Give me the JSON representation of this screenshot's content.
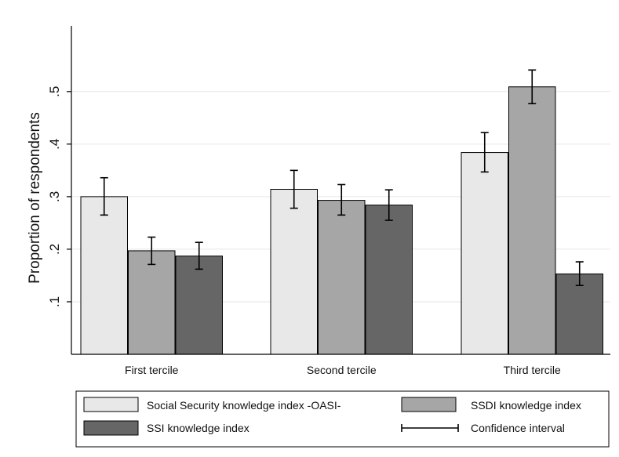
{
  "colors": {
    "background": "#ffffff",
    "gridline": "#e6e6e6",
    "axis": "#000000",
    "errorbar": "#000000",
    "bar_stroke": "#000000",
    "series": [
      "#e8e8e8",
      "#a6a6a6",
      "#666666"
    ]
  },
  "chart_data": {
    "type": "bar",
    "title": "",
    "xlabel": "",
    "ylabel": "Proportion of respondents",
    "categories": [
      "First tercile",
      "Second tercile",
      "Third tercile"
    ],
    "series": [
      {
        "name": "Social Security knowledge index -OASI-",
        "values": [
          0.3,
          0.314,
          0.384
        ],
        "ci_low": [
          0.265,
          0.278,
          0.347
        ],
        "ci_high": [
          0.336,
          0.35,
          0.422
        ]
      },
      {
        "name": "SSDI knowledge index",
        "values": [
          0.197,
          0.293,
          0.509
        ],
        "ci_low": [
          0.171,
          0.265,
          0.477
        ],
        "ci_high": [
          0.223,
          0.323,
          0.541
        ]
      },
      {
        "name": "SSI knowledge index",
        "values": [
          0.187,
          0.284,
          0.153
        ],
        "ci_low": [
          0.162,
          0.255,
          0.131
        ],
        "ci_high": [
          0.213,
          0.313,
          0.176
        ]
      }
    ],
    "ylim": [
      0.0,
      0.625
    ],
    "yticks": [
      0.1,
      0.2,
      0.3,
      0.4,
      0.5
    ],
    "ytick_labels": [
      ".1",
      ".2",
      ".3",
      ".4",
      ".5"
    ],
    "grid": true,
    "legend": {
      "placement": "bottom",
      "entries": [
        {
          "label": "Social Security knowledge index -OASI-",
          "kind": "swatch",
          "series": 0
        },
        {
          "label": "SSDI knowledge index",
          "kind": "swatch",
          "series": 1
        },
        {
          "label": "SSI knowledge index",
          "kind": "swatch",
          "series": 2
        },
        {
          "label": "Confidence interval",
          "kind": "errorbar"
        }
      ]
    }
  }
}
